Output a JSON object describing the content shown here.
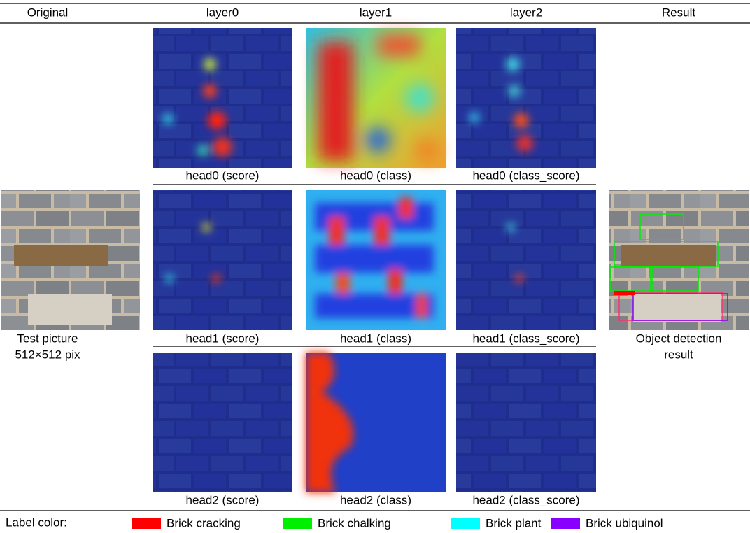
{
  "header": [
    "Original",
    "layer0",
    "layer1",
    "layer2",
    "Result"
  ],
  "captions": [
    [
      "head0 (score)",
      "head0 (class)",
      "head0 (class_score)"
    ],
    [
      "head1 (score)",
      "head1 (class)",
      "head1 (class_score)"
    ],
    [
      "head2 (score)",
      "head2 (class)",
      "head2 (class_score)"
    ]
  ],
  "original_caption": [
    "Test picture",
    "512×512 pix"
  ],
  "result_caption": [
    "Object detection",
    "result"
  ],
  "legend": {
    "title": "Label color:",
    "items": [
      {
        "label": "Brick cracking",
        "color": "#ff0000"
      },
      {
        "label": "Brick chalking",
        "color": "#00ee00"
      },
      {
        "label": "Brick plant",
        "color": "#00ffff"
      },
      {
        "label": "Brick ubiquinol",
        "color": "#8a00ff"
      }
    ]
  }
}
